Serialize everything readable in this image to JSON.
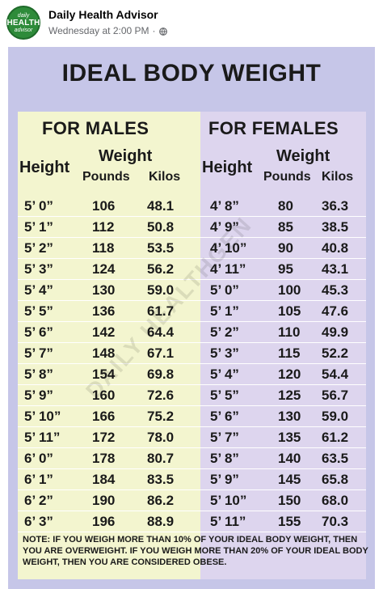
{
  "post": {
    "avatar_lines": [
      "daily",
      "HEALTH",
      "advisor"
    ],
    "page_name": "Daily Health Advisor",
    "timestamp": "Wednesday at 2:00 PM",
    "separator": "·",
    "privacy_icon": "globe-icon"
  },
  "poster": {
    "title": "IDEAL BODY WEIGHT",
    "males": {
      "heading": "FOR MALES",
      "height_label": "Height",
      "weight_label": "Weight",
      "pounds_label": "Pounds",
      "kilos_label": "Kilos",
      "rows": [
        {
          "height": "5’ 0”",
          "pounds": "106",
          "kilos": "48.1"
        },
        {
          "height": "5’ 1”",
          "pounds": "112",
          "kilos": "50.8"
        },
        {
          "height": "5’ 2”",
          "pounds": "118",
          "kilos": "53.5"
        },
        {
          "height": "5’ 3”",
          "pounds": "124",
          "kilos": "56.2"
        },
        {
          "height": "5’ 4”",
          "pounds": "130",
          "kilos": "59.0"
        },
        {
          "height": "5’ 5”",
          "pounds": "136",
          "kilos": "61.7"
        },
        {
          "height": "5’ 6”",
          "pounds": "142",
          "kilos": "64.4"
        },
        {
          "height": "5’ 7”",
          "pounds": "148",
          "kilos": "67.1"
        },
        {
          "height": "5’ 8”",
          "pounds": "154",
          "kilos": "69.8"
        },
        {
          "height": "5’ 9”",
          "pounds": "160",
          "kilos": "72.6"
        },
        {
          "height": "5’ 10”",
          "pounds": "166",
          "kilos": "75.2"
        },
        {
          "height": "5’ 11”",
          "pounds": "172",
          "kilos": "78.0"
        },
        {
          "height": "6’ 0”",
          "pounds": "178",
          "kilos": "80.7"
        },
        {
          "height": "6’ 1”",
          "pounds": "184",
          "kilos": "83.5"
        },
        {
          "height": "6’ 2”",
          "pounds": "190",
          "kilos": "86.2"
        },
        {
          "height": "6’ 3”",
          "pounds": "196",
          "kilos": "88.9"
        }
      ]
    },
    "females": {
      "heading": "FOR FEMALES",
      "height_label": "Height",
      "weight_label": "Weight",
      "pounds_label": "Pounds",
      "kilos_label": "Kilos",
      "rows": [
        {
          "height": "4’ 8”",
          "pounds": "80",
          "kilos": "36.3"
        },
        {
          "height": "4’ 9”",
          "pounds": "85",
          "kilos": "38.5"
        },
        {
          "height": "4’ 10”",
          "pounds": "90",
          "kilos": "40.8"
        },
        {
          "height": "4’ 11”",
          "pounds": "95",
          "kilos": "43.1"
        },
        {
          "height": "5’ 0”",
          "pounds": "100",
          "kilos": "45.3"
        },
        {
          "height": "5’ 1”",
          "pounds": "105",
          "kilos": "47.6"
        },
        {
          "height": "5’ 2”",
          "pounds": "110",
          "kilos": "49.9"
        },
        {
          "height": "5’ 3”",
          "pounds": "115",
          "kilos": "52.2"
        },
        {
          "height": "5’ 4”",
          "pounds": "120",
          "kilos": "54.4"
        },
        {
          "height": "5’ 5”",
          "pounds": "125",
          "kilos": "56.7"
        },
        {
          "height": "5’ 6”",
          "pounds": "130",
          "kilos": "59.0"
        },
        {
          "height": "5’ 7”",
          "pounds": "135",
          "kilos": "61.2"
        },
        {
          "height": "5’ 8”",
          "pounds": "140",
          "kilos": "63.5"
        },
        {
          "height": "5’ 9”",
          "pounds": "145",
          "kilos": "65.8"
        },
        {
          "height": "5’ 10”",
          "pounds": "150",
          "kilos": "68.0"
        },
        {
          "height": "5’ 11”",
          "pounds": "155",
          "kilos": "70.3"
        }
      ]
    },
    "note": "NOTE: IF YOU WEIGH MORE THAN 10% OF YOUR IDEAL BODY WEIGHT, THEN YOU ARE OVERWEIGHT. IF YOU WEIGH MORE THAN 20% OF YOUR IDEAL BODY WEIGHT, THEN YOU ARE CONSIDERED OBESE.",
    "watermark": "DAILY HEALTHGEN"
  },
  "colors": {
    "poster_bg": "#c6c6e8",
    "males_bg": "#f3f5cf",
    "females_bg": "#ddd5ee",
    "brand_green": "#2e8b3a"
  }
}
